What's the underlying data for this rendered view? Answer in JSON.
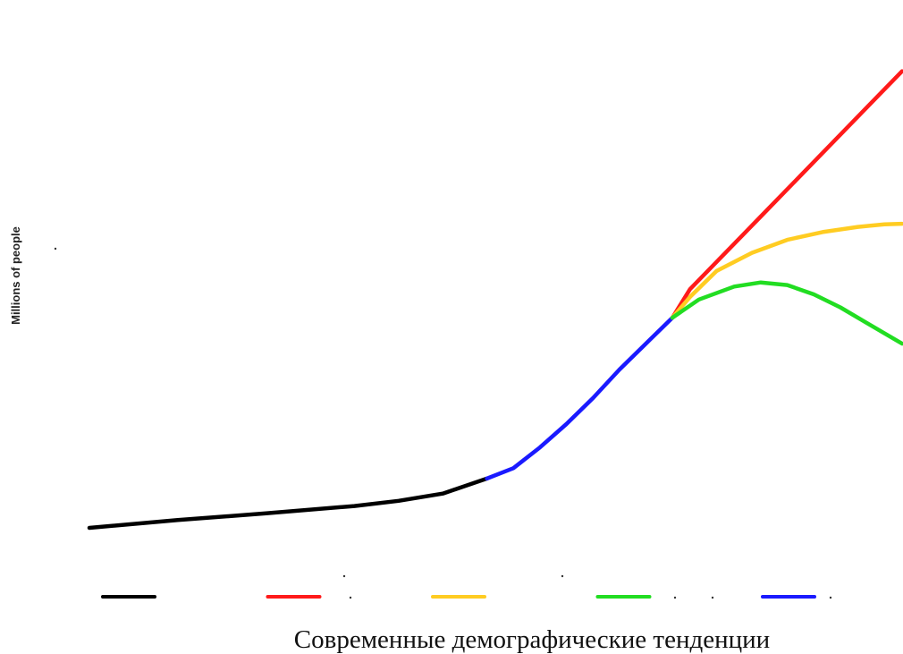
{
  "chart_data": {
    "type": "line",
    "title": "",
    "caption": "Современные демографические тенденции",
    "xlabel": "",
    "ylabel": "Millions of people",
    "xlim": [
      0,
      100
    ],
    "ylim": [
      0,
      100
    ],
    "grid": false,
    "legend": "bottom",
    "series": [
      {
        "color": "#000000",
        "points": [
          [
            0,
            10
          ],
          [
            10,
            11.5
          ],
          [
            20,
            12.8
          ],
          [
            30,
            14.2
          ],
          [
            35,
            15.2
          ],
          [
            40,
            16.6
          ],
          [
            45,
            19.5
          ]
        ]
      },
      {
        "color": "#1a1aff",
        "points": [
          [
            45,
            19.5
          ],
          [
            48,
            21.5
          ],
          [
            51,
            25.5
          ],
          [
            54,
            30
          ],
          [
            57,
            35
          ],
          [
            60,
            40.5
          ],
          [
            63,
            45.5
          ],
          [
            66,
            50.5
          ]
        ]
      },
      {
        "color": "#ff1a1a",
        "points": [
          [
            66,
            50.5
          ],
          [
            68,
            56
          ],
          [
            72,
            63
          ],
          [
            76,
            70
          ],
          [
            80,
            77
          ],
          [
            84,
            84
          ],
          [
            88,
            91
          ],
          [
            92,
            98
          ]
        ]
      },
      {
        "color": "#ffcc22",
        "points": [
          [
            66,
            50.5
          ],
          [
            68,
            54.5
          ],
          [
            71,
            59.5
          ],
          [
            75,
            63
          ],
          [
            79,
            65.5
          ],
          [
            83,
            67
          ],
          [
            87,
            68
          ],
          [
            90,
            68.5
          ],
          [
            92,
            68.6
          ]
        ]
      },
      {
        "color": "#22dd22",
        "points": [
          [
            66,
            50.5
          ],
          [
            69,
            54
          ],
          [
            73,
            56.5
          ],
          [
            76,
            57.3
          ],
          [
            79,
            56.8
          ],
          [
            82,
            55
          ],
          [
            85,
            52.5
          ],
          [
            88,
            49.5
          ],
          [
            92,
            45.5
          ]
        ]
      }
    ],
    "legend_entries": [
      {
        "color": "#000000"
      },
      {
        "color": "#ff1a1a"
      },
      {
        "color": "#ffcc22"
      },
      {
        "color": "#22dd22"
      },
      {
        "color": "#1a1aff"
      }
    ]
  }
}
